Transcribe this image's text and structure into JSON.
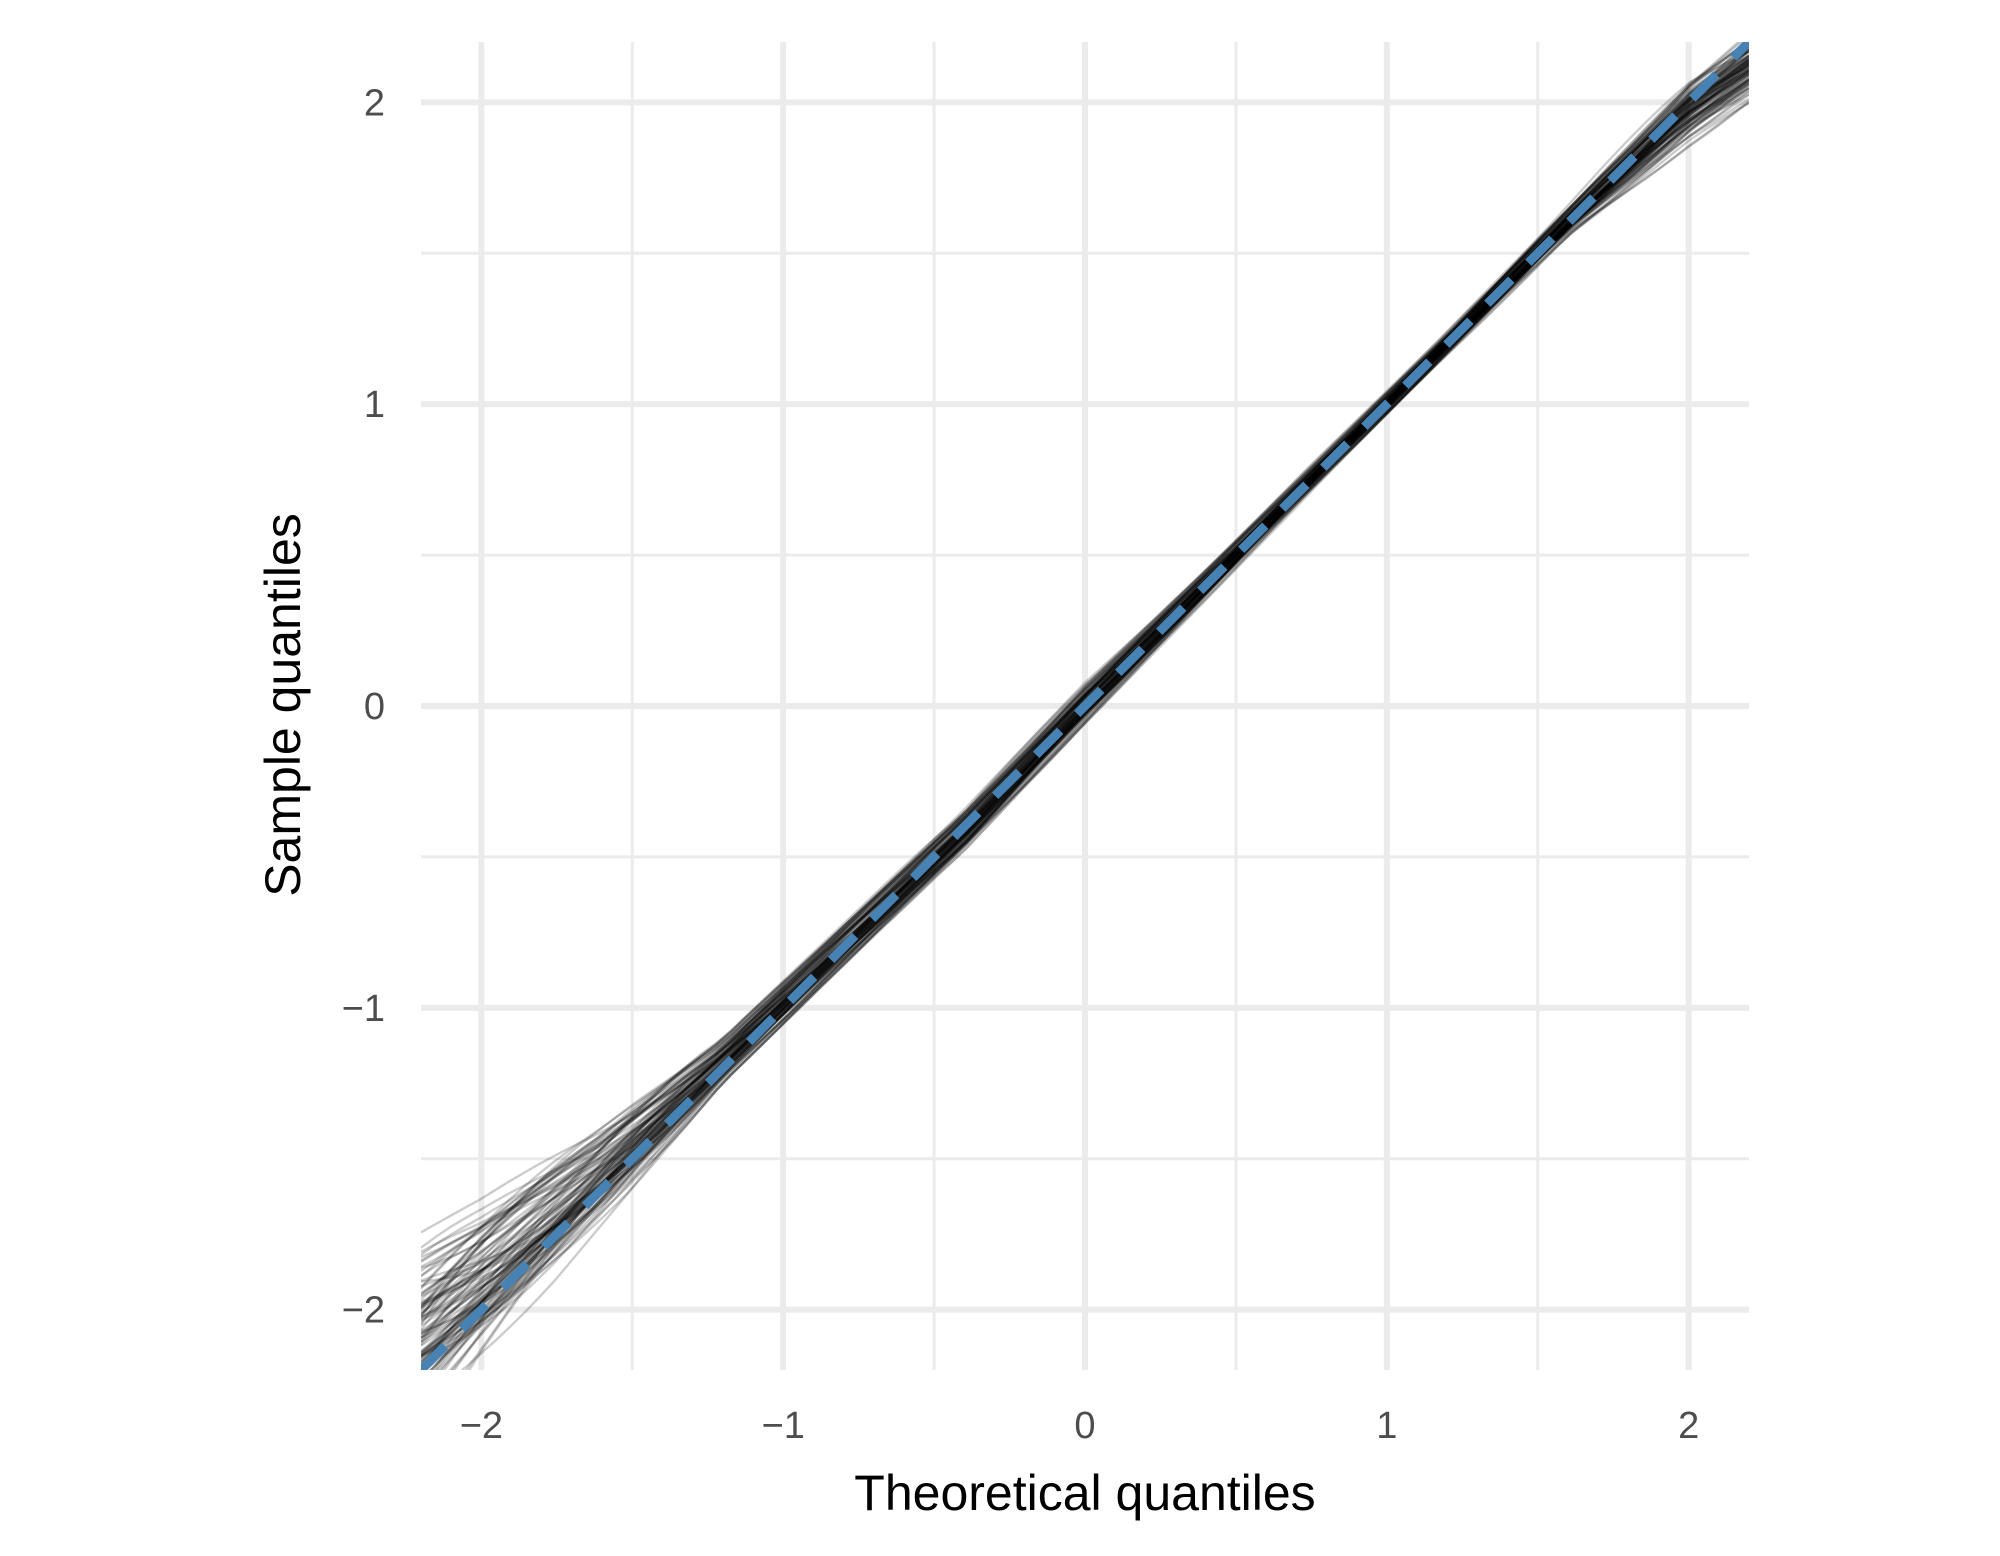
{
  "chart_data": {
    "type": "line",
    "xlabel": "Theoretical quantiles",
    "ylabel": "Sample quantiles",
    "xlim": [
      -2.2,
      2.2
    ],
    "ylim": [
      -2.2,
      2.2
    ],
    "x_ticks": [
      -2,
      -1,
      0,
      1,
      2
    ],
    "y_ticks": [
      -2,
      -1,
      0,
      1,
      2
    ],
    "x_tick_labels": [
      "−2",
      "−1",
      "0",
      "1",
      "2"
    ],
    "y_tick_labels": [
      "−2",
      "−1",
      "0",
      "1",
      "2"
    ],
    "grid": true,
    "reference_line": {
      "slope": 1,
      "intercept": 0,
      "style": "dashed",
      "color": "#4682B4"
    },
    "envelope": {
      "count": 100,
      "color": "#000000",
      "quantiles": [
        -2.2,
        -2.0,
        -1.6,
        -1.2,
        -0.8,
        -0.4,
        0.0,
        0.4,
        0.8,
        1.2,
        1.6,
        2.0,
        2.2
      ],
      "lower": [
        -2.45,
        -2.2,
        -1.72,
        -1.25,
        -0.86,
        -0.48,
        -0.06,
        0.35,
        0.76,
        1.16,
        1.55,
        1.85,
        1.98
      ],
      "upper": [
        -1.72,
        -1.62,
        -1.38,
        -1.1,
        -0.72,
        -0.34,
        0.08,
        0.46,
        0.85,
        1.24,
        1.66,
        2.1,
        2.25
      ]
    }
  }
}
